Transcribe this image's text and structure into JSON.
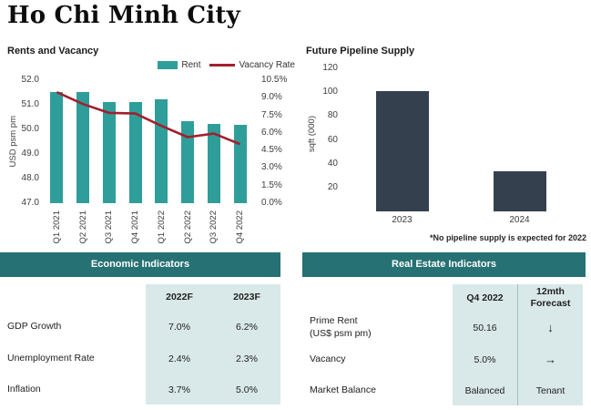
{
  "page": {
    "title": "Ho Chi Minh City"
  },
  "colors": {
    "teal_bar": "#2f9e9a",
    "red_line": "#a2202d",
    "navy_bar": "#35404f",
    "header_teal": "#267173",
    "cell_bg": "#d9e8e8",
    "divider": "#9cc0c2"
  },
  "chart_data": [
    {
      "type": "bar",
      "title": "Rents and Vacancy",
      "categories": [
        "Q1 2021",
        "Q2 2021",
        "Q3 2021",
        "Q4 2021",
        "Q1 2022",
        "Q2 2022",
        "Q3 2022",
        "Q4 2022"
      ],
      "series": [
        {
          "name": "Rent",
          "type": "bar",
          "axis": "left",
          "values": [
            51.5,
            51.5,
            51.1,
            51.1,
            51.2,
            50.3,
            50.2,
            50.16
          ]
        },
        {
          "name": "Vacancy Rate",
          "type": "line",
          "axis": "right",
          "values": [
            9.4,
            8.4,
            7.65,
            7.6,
            6.55,
            5.6,
            5.9,
            5.0
          ]
        }
      ],
      "left_axis": {
        "label": "USD psm pm",
        "min": 47,
        "max": 52,
        "ticks": [
          "52.0",
          "51.0",
          "50.0",
          "49.0",
          "48.0",
          "47.0"
        ]
      },
      "right_axis": {
        "min": 0,
        "max": 10.5,
        "ticks": [
          "10.5%",
          "9.0%",
          "7.5%",
          "6.0%",
          "4.5%",
          "3.0%",
          "1.5%",
          "0.0%"
        ]
      },
      "legend": [
        "Rent",
        "Vacancy Rate"
      ],
      "grid": false,
      "legend_position": "top-right"
    },
    {
      "type": "bar",
      "title": "Future Pipeline Supply",
      "categories": [
        "2023",
        "2024"
      ],
      "values": [
        101,
        34
      ],
      "ylabel": "sqft (000)",
      "yticks": [
        120,
        100,
        80,
        60,
        40,
        20
      ],
      "ylim": [
        0,
        130
      ],
      "footnote": "*No pipeline supply is expected for 2022",
      "grid": false,
      "legend_position": "none"
    }
  ],
  "tables": {
    "economic": {
      "title": "Economic Indicators",
      "columns": [
        "2022F",
        "2023F"
      ],
      "rows": [
        {
          "label": "GDP Growth",
          "values": [
            "7.0%",
            "6.2%"
          ]
        },
        {
          "label": "Unemployment Rate",
          "values": [
            "2.4%",
            "2.3%"
          ]
        },
        {
          "label": "Inflation",
          "values": [
            "3.7%",
            "5.0%"
          ]
        }
      ]
    },
    "real_estate": {
      "title": "Real Estate Indicators",
      "columns": [
        "Q4 2022",
        "12mth Forecast"
      ],
      "rows": [
        {
          "label": "Prime Rent (US$ psm pm)",
          "label_lines": [
            "Prime Rent",
            "(US$ psm pm)"
          ],
          "values": [
            "50.16",
            "↓"
          ]
        },
        {
          "label": "Vacancy",
          "label_lines": [
            "Vacancy"
          ],
          "values": [
            "5.0%",
            "→"
          ]
        },
        {
          "label": "Market Balance",
          "label_lines": [
            "Market Balance"
          ],
          "values": [
            "Balanced",
            "Tenant"
          ]
        }
      ]
    }
  }
}
